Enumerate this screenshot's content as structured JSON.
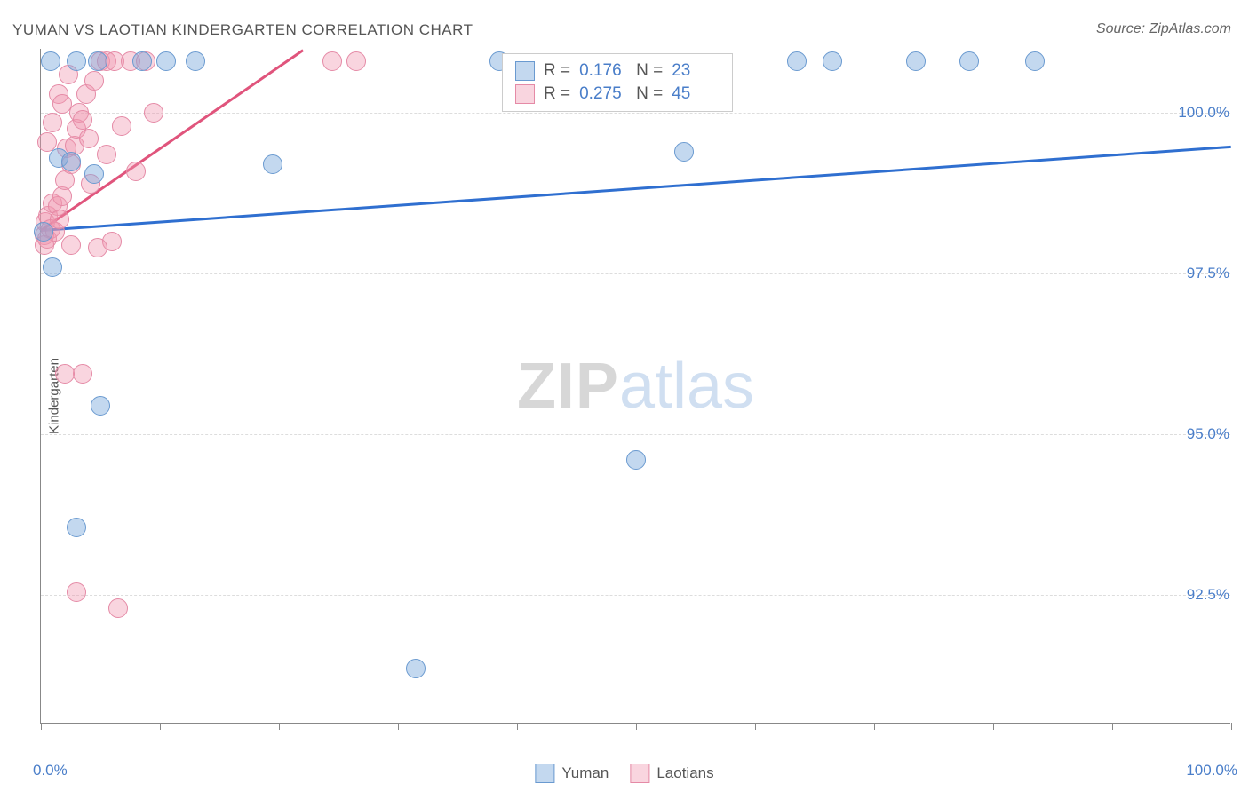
{
  "chart": {
    "type": "scatter",
    "title": "YUMAN VS LAOTIAN KINDERGARTEN CORRELATION CHART",
    "source_label": "Source: ZipAtlas.com",
    "ylabel": "Kindergarten",
    "background_color": "#ffffff",
    "grid_color": "#dddddd",
    "axis_color": "#888888",
    "text_color": "#555555",
    "value_color": "#4a7ec9",
    "xlim": [
      0,
      100
    ],
    "ylim": [
      90.5,
      101
    ],
    "x_ticks": [
      0,
      10,
      20,
      30,
      40,
      50,
      60,
      70,
      80,
      90,
      100
    ],
    "x_tick_labels": {
      "0": "0.0%",
      "100": "100.0%"
    },
    "y_ticks": [
      92.5,
      95.0,
      97.5,
      100.0
    ],
    "y_tick_labels": [
      "92.5%",
      "95.0%",
      "97.5%",
      "100.0%"
    ],
    "watermark": {
      "part1": "ZIP",
      "part2": "atlas"
    },
    "stats_box": {
      "rows": [
        {
          "color": "blue",
          "r_label": "R =",
          "r": "0.176",
          "n_label": "N =",
          "n": "23"
        },
        {
          "color": "pink",
          "r_label": "R =",
          "r": "0.275",
          "n_label": "N =",
          "n": "45"
        }
      ]
    },
    "bottom_legend": [
      {
        "color": "blue",
        "label": "Yuman"
      },
      {
        "color": "pink",
        "label": "Laotians"
      }
    ],
    "series": {
      "yuman": {
        "color_fill": "rgba(122,168,219,0.45)",
        "color_stroke": "#6a9ad0",
        "marker_size": 22,
        "trend": {
          "x1": 0,
          "y1": 98.2,
          "x2": 100,
          "y2": 99.5,
          "color": "#2f6fd0",
          "width": 2.5
        },
        "points": [
          [
            0.2,
            98.15
          ],
          [
            1.0,
            97.6
          ],
          [
            1.5,
            99.3
          ],
          [
            2.5,
            99.25
          ],
          [
            3.0,
            100.8
          ],
          [
            4.5,
            99.05
          ],
          [
            4.8,
            100.8
          ],
          [
            5.0,
            95.45
          ],
          [
            8.5,
            100.8
          ],
          [
            10.5,
            100.8
          ],
          [
            13.0,
            100.8
          ],
          [
            19.5,
            99.2
          ],
          [
            38.5,
            100.8
          ],
          [
            54.0,
            99.4
          ],
          [
            50.0,
            94.6
          ],
          [
            63.5,
            100.8
          ],
          [
            66.5,
            100.8
          ],
          [
            73.5,
            100.8
          ],
          [
            78.0,
            100.8
          ],
          [
            83.5,
            100.8
          ],
          [
            3.0,
            93.55
          ],
          [
            31.5,
            91.35
          ],
          [
            0.8,
            100.8
          ]
        ]
      },
      "laotians": {
        "color_fill": "rgba(240,150,175,0.4)",
        "color_stroke": "#e58aa6",
        "marker_size": 22,
        "trend": {
          "x1": 0,
          "y1": 98.2,
          "x2": 22,
          "y2": 101,
          "color": "#e0547c",
          "width": 2.5
        },
        "points": [
          [
            0.3,
            98.1
          ],
          [
            0.4,
            98.3
          ],
          [
            0.5,
            98.05
          ],
          [
            0.6,
            98.4
          ],
          [
            0.8,
            98.2
          ],
          [
            1.0,
            98.6
          ],
          [
            1.2,
            98.15
          ],
          [
            1.4,
            98.55
          ],
          [
            1.6,
            98.35
          ],
          [
            1.8,
            98.7
          ],
          [
            2.0,
            98.95
          ],
          [
            2.2,
            99.45
          ],
          [
            2.5,
            99.2
          ],
          [
            2.8,
            99.5
          ],
          [
            3.0,
            99.75
          ],
          [
            3.2,
            100.0
          ],
          [
            3.5,
            99.9
          ],
          [
            3.8,
            100.3
          ],
          [
            4.0,
            99.6
          ],
          [
            4.5,
            100.5
          ],
          [
            5.0,
            100.8
          ],
          [
            5.5,
            100.8
          ],
          [
            6.2,
            100.8
          ],
          [
            6.8,
            99.8
          ],
          [
            7.5,
            100.8
          ],
          [
            8.0,
            99.1
          ],
          [
            8.8,
            100.8
          ],
          [
            9.5,
            100.0
          ],
          [
            3.5,
            95.95
          ],
          [
            2.0,
            95.95
          ],
          [
            3.0,
            92.55
          ],
          [
            6.5,
            92.3
          ],
          [
            2.5,
            97.95
          ],
          [
            24.5,
            100.8
          ],
          [
            26.5,
            100.8
          ],
          [
            1.0,
            99.85
          ],
          [
            1.5,
            100.3
          ],
          [
            0.5,
            99.55
          ],
          [
            4.2,
            98.9
          ],
          [
            5.5,
            99.35
          ],
          [
            0.3,
            97.95
          ],
          [
            1.8,
            100.15
          ],
          [
            2.3,
            100.6
          ],
          [
            6.0,
            98.0
          ],
          [
            4.8,
            97.9
          ]
        ]
      }
    }
  }
}
